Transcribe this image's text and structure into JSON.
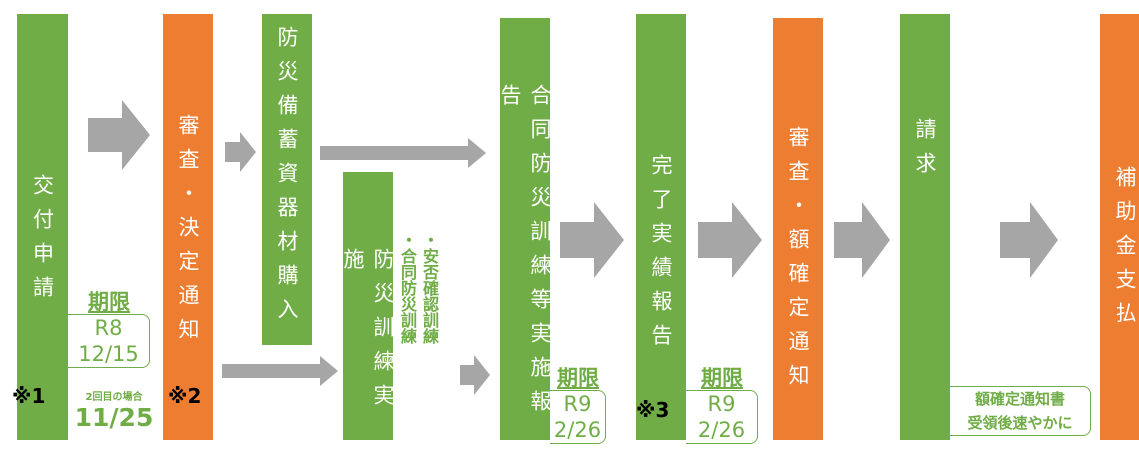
{
  "nodes": [
    {
      "label": "交付申請"
    },
    {
      "label": "審査・決定通知"
    },
    {
      "label": "防災備蓄資器材購入"
    },
    {
      "label": "防災訓練実施"
    },
    {
      "label": "合同防災訓練等実施報告"
    },
    {
      "label": "完了実績報告"
    },
    {
      "label": "審査・額確定通知"
    },
    {
      "label": "請求"
    },
    {
      "label": "補助金支払"
    }
  ],
  "training_items": [
    "・安否確認訓練",
    "・合同防災訓練"
  ],
  "deadlines": [
    {
      "label": "期限",
      "era": "R8",
      "date": "12/15"
    },
    {
      "label": "期限",
      "era": "R9",
      "date": "2/26"
    },
    {
      "label": "期限",
      "era": "R9",
      "date": "2/26"
    }
  ],
  "second_time": {
    "label": "2回目の場合",
    "date": "11/25"
  },
  "marks": [
    "※1",
    "※2",
    "※3"
  ],
  "payment_note": [
    "額確定通知書",
    "受領後速やかに"
  ]
}
